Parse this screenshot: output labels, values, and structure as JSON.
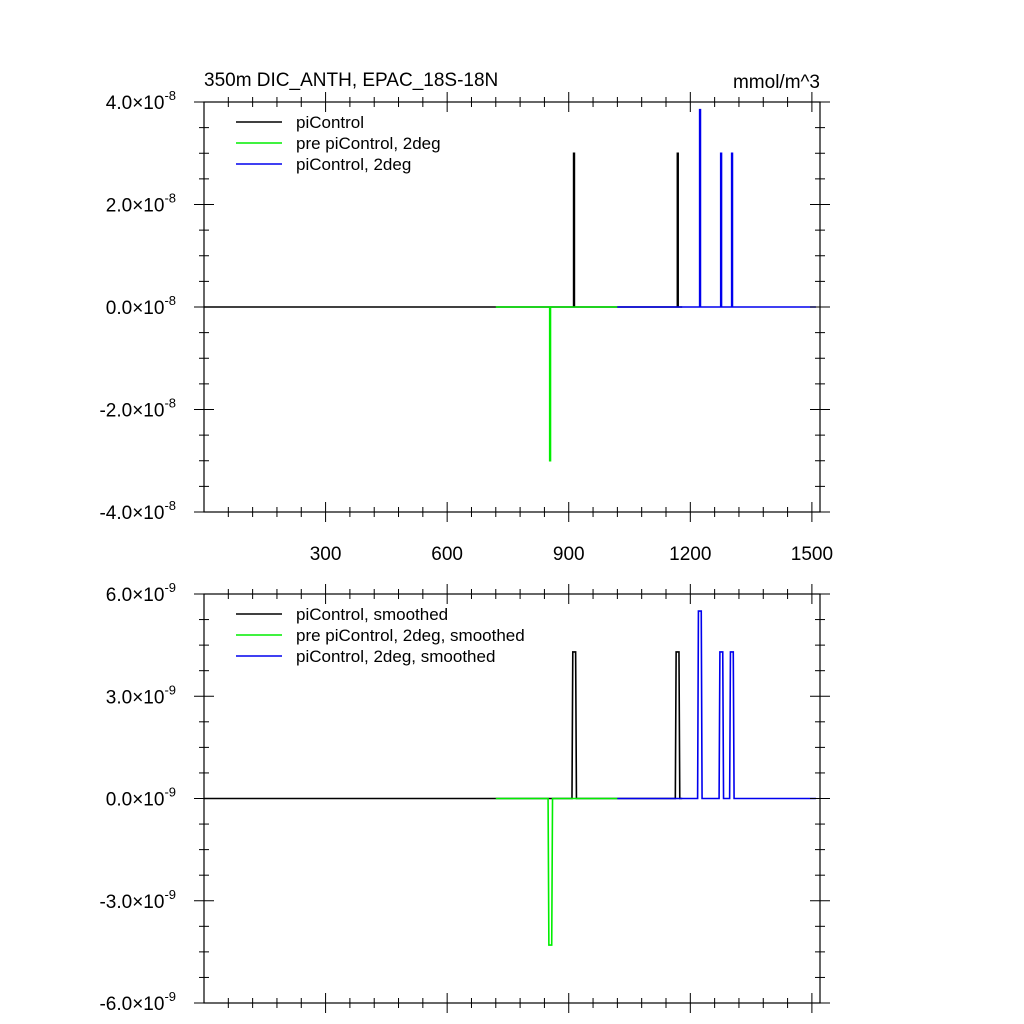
{
  "chart_data": [
    {
      "type": "line",
      "title": "350m DIC_ANTH, EPAC_18S-18N",
      "units": "mmol/m^3",
      "xlim": [
        0,
        1520
      ],
      "ylim": [
        -4e-08,
        4e-08
      ],
      "xticks": [
        300,
        600,
        900,
        1200,
        1500
      ],
      "xtick_labels": [
        "300",
        "600",
        "900",
        "1200",
        "1500"
      ],
      "yticks": [
        -4e-08,
        -2e-08,
        0,
        2e-08,
        4e-08
      ],
      "ytick_labels": [
        {
          "mantissa": "-4.0",
          "base": "10",
          "exp": "-8"
        },
        {
          "mantissa": "-2.0",
          "base": "10",
          "exp": "-8"
        },
        {
          "mantissa": "0.0",
          "base": "10",
          "exp": "-8"
        },
        {
          "mantissa": "2.0",
          "base": "10",
          "exp": "-8"
        },
        {
          "mantissa": "4.0",
          "base": "10",
          "exp": "-8"
        }
      ],
      "legend_position": "top-left",
      "series": [
        {
          "name": "piControl",
          "color": "#000000",
          "x": [
            0,
            912,
            912,
            914,
            914,
            1168,
            1168,
            1170,
            1170,
            1180
          ],
          "y": [
            0,
            0,
            3e-08,
            3e-08,
            0,
            0,
            3e-08,
            3e-08,
            0,
            0
          ]
        },
        {
          "name": "pre piControl, 2deg",
          "color": "#00ee00",
          "x": [
            720,
            853,
            853,
            855,
            855,
            1020
          ],
          "y": [
            0,
            0,
            -3e-08,
            -3e-08,
            0,
            0
          ]
        },
        {
          "name": "piControl, 2deg",
          "color": "#0000ee",
          "x": [
            1020,
            1223,
            1223,
            1225,
            1225,
            1275,
            1275,
            1277,
            1277,
            1302,
            1302,
            1304,
            1304,
            1510
          ],
          "y": [
            0,
            0,
            3.85e-08,
            3.85e-08,
            0,
            0,
            3e-08,
            3e-08,
            0,
            0,
            3e-08,
            3e-08,
            0,
            0
          ]
        }
      ]
    },
    {
      "type": "line",
      "title": "",
      "xlim": [
        0,
        1520
      ],
      "ylim": [
        -6e-09,
        6e-09
      ],
      "xticks": [
        300,
        600,
        900,
        1200,
        1500
      ],
      "xtick_labels": [],
      "yticks": [
        -6e-09,
        -3e-09,
        0,
        3e-09,
        6e-09
      ],
      "ytick_labels": [
        {
          "mantissa": "-6.0",
          "base": "10",
          "exp": "-9"
        },
        {
          "mantissa": "-3.0",
          "base": "10",
          "exp": "-9"
        },
        {
          "mantissa": "0.0",
          "base": "10",
          "exp": "-9"
        },
        {
          "mantissa": "3.0",
          "base": "10",
          "exp": "-9"
        },
        {
          "mantissa": "6.0",
          "base": "10",
          "exp": "-9"
        }
      ],
      "legend_position": "top-left",
      "series": [
        {
          "name": "piControl, smoothed",
          "color": "#000000",
          "x": [
            0,
            908,
            910,
            917,
            919,
            1163,
            1165,
            1172,
            1174,
            1180
          ],
          "y": [
            0,
            0,
            4.3e-09,
            4.3e-09,
            0,
            0,
            4.3e-09,
            4.3e-09,
            0,
            0
          ]
        },
        {
          "name": "pre piControl, 2deg, smoothed",
          "color": "#00ee00",
          "x": [
            720,
            849,
            851,
            858,
            860,
            1020
          ],
          "y": [
            0,
            0,
            -4.3e-09,
            -4.3e-09,
            0,
            0
          ]
        },
        {
          "name": "piControl, 2deg, smoothed",
          "color": "#0000ee",
          "x": [
            1020,
            1218,
            1220,
            1227,
            1229,
            1271,
            1273,
            1280,
            1282,
            1297,
            1299,
            1306,
            1308,
            1510
          ],
          "y": [
            0,
            0,
            5.5e-09,
            5.5e-09,
            0,
            0,
            4.3e-09,
            4.3e-09,
            0,
            0,
            4.3e-09,
            4.3e-09,
            0,
            0
          ]
        }
      ]
    }
  ]
}
